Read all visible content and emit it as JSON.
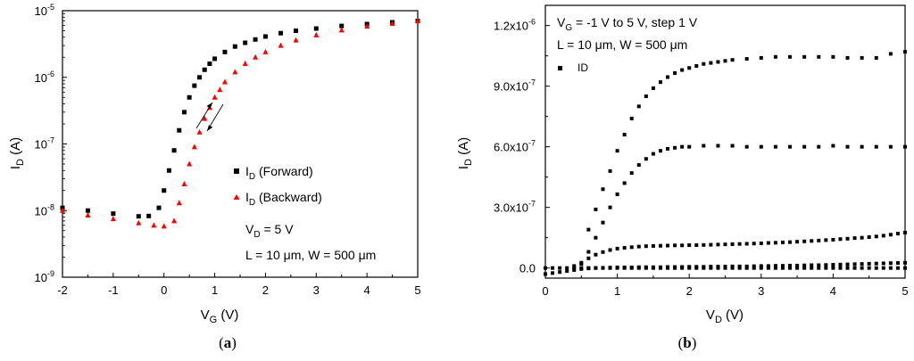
{
  "chart_data": [
    {
      "panel": "a",
      "caption": "(a)",
      "type": "scatter",
      "yscale": "log",
      "xlim": [
        -2,
        5
      ],
      "ylim": [
        1e-09,
        1e-05
      ],
      "xticks": [
        -2,
        -1,
        0,
        1,
        2,
        3,
        4,
        5
      ],
      "xtick_labels": [
        "-2",
        "-1",
        "0",
        "1",
        "2",
        "3",
        "4",
        "5"
      ],
      "yticks": [
        {
          "mant": "10",
          "exp": "-9",
          "value": 1e-09
        },
        {
          "mant": "10",
          "exp": "-8",
          "value": 1e-08
        },
        {
          "mant": "10",
          "exp": "-7",
          "value": 1e-07
        },
        {
          "mant": "10",
          "exp": "-6",
          "value": 1e-06
        },
        {
          "mant": "10",
          "exp": "-5",
          "value": 1e-05
        }
      ],
      "xlabel": {
        "main": "V",
        "sub": "G",
        "unit": " (V)"
      },
      "ylabel": {
        "main": "I",
        "sub": "D",
        "unit": " (A)"
      },
      "legend_position": "center-right",
      "series": [
        {
          "name_main": "I",
          "name_sub": "D",
          "name_rest": " (Forward)",
          "marker": "square",
          "color": "#000000",
          "x": [
            -2,
            -1.5,
            -1,
            -0.5,
            -0.3,
            -0.1,
            0,
            0.1,
            0.2,
            0.3,
            0.4,
            0.5,
            0.6,
            0.7,
            0.8,
            0.9,
            1.0,
            1.2,
            1.4,
            1.6,
            1.8,
            2.0,
            2.3,
            2.6,
            3.0,
            3.5,
            4.0,
            4.5,
            5.0
          ],
          "y": [
            1.1e-08,
            1e-08,
            9e-09,
            8.2e-09,
            8.3e-09,
            1.1e-08,
            2e-08,
            4e-08,
            8e-08,
            1.6e-07,
            3e-07,
            5e-07,
            7.5e-07,
            1e-06,
            1.3e-06,
            1.6e-06,
            1.9e-06,
            2.4e-06,
            2.9e-06,
            3.3e-06,
            3.7e-06,
            4.1e-06,
            4.6e-06,
            5e-06,
            5.4e-06,
            5.9e-06,
            6.3e-06,
            6.7e-06,
            7e-06
          ]
        },
        {
          "name_main": "I",
          "name_sub": "D",
          "name_rest": " (Backward)",
          "marker": "triangle",
          "color": "#ff0000",
          "x": [
            -2,
            -1.5,
            -1,
            -0.5,
            -0.2,
            0,
            0.2,
            0.3,
            0.4,
            0.5,
            0.6,
            0.7,
            0.8,
            0.9,
            1.0,
            1.1,
            1.2,
            1.4,
            1.6,
            1.8,
            2.0,
            2.3,
            2.6,
            3.0,
            3.5,
            4.0,
            4.5,
            5.0
          ],
          "y": [
            1e-08,
            8.5e-09,
            7.5e-09,
            6.5e-09,
            6e-09,
            5.8e-09,
            7e-09,
            1.3e-08,
            2.5e-08,
            5e-08,
            9e-08,
            1.5e-07,
            2.4e-07,
            3.5e-07,
            5e-07,
            6.5e-07,
            8.5e-07,
            1.2e-06,
            1.6e-06,
            2e-06,
            2.4e-06,
            3e-06,
            3.6e-06,
            4.3e-06,
            5.1e-06,
            5.8e-06,
            6.4e-06,
            7e-06
          ]
        }
      ],
      "annotations": [
        {
          "main": "V",
          "sub": "D",
          "rest": " = 5 V"
        },
        {
          "text": "L = 10 μm, W = 500 μm"
        }
      ]
    },
    {
      "panel": "b",
      "caption": "(b)",
      "type": "scatter",
      "xlim": [
        0,
        5
      ],
      "ylim": [
        -5e-08,
        1.3e-06
      ],
      "xticks": [
        0,
        1,
        2,
        3,
        4,
        5
      ],
      "xtick_labels": [
        "0",
        "1",
        "2",
        "3",
        "4",
        "5"
      ],
      "yticks": [
        {
          "mant": "0.0",
          "exp": "",
          "value": 0
        },
        {
          "mant": "3.0x10",
          "exp": "-7",
          "value": 3e-07
        },
        {
          "mant": "6.0x10",
          "exp": "-7",
          "value": 6e-07
        },
        {
          "mant": "9.0x10",
          "exp": "-7",
          "value": 9e-07
        },
        {
          "mant": "1.2x10",
          "exp": "-6",
          "value": 1.2e-06
        }
      ],
      "xlabel": {
        "main": "V",
        "sub": "D",
        "unit": " (V)"
      },
      "ylabel": {
        "main": "I",
        "sub": "D",
        "unit": " (A)"
      },
      "legend_position": "top-left",
      "legend": [
        "ID"
      ],
      "annotations": [
        {
          "main": "V",
          "sub": "G",
          "rest": " = -1 V to 5 V, step 1 V"
        },
        {
          "text": "L = 10 μm, W = 500 μm"
        }
      ],
      "series": [
        {
          "name": "ID",
          "color": "#000000",
          "x": [
            0,
            0.1,
            0.2,
            0.3,
            0.4,
            0.5,
            0.6,
            0.7,
            0.8,
            0.9,
            1.0,
            1.1,
            1.2,
            1.3,
            1.4,
            1.5,
            1.6,
            1.7,
            1.8,
            1.9,
            2.0,
            2.1,
            2.2,
            2.3,
            2.4,
            2.5,
            2.6,
            2.7,
            2.8,
            2.9,
            3.0,
            3.1,
            3.2,
            3.3,
            3.4,
            3.5,
            3.6,
            3.7,
            3.8,
            3.9,
            4.0,
            4.1,
            4.2,
            4.3,
            4.4,
            4.5,
            4.6,
            4.7,
            4.8,
            4.9,
            5.0
          ],
          "y": [
            0,
            0,
            0,
            0,
            0,
            0,
            0,
            0,
            0,
            0,
            0,
            0,
            0,
            0,
            0,
            0,
            0,
            0,
            0,
            0,
            0,
            0,
            0,
            0,
            0,
            0,
            0,
            0,
            0,
            0,
            0,
            0,
            0,
            0,
            0,
            0,
            0,
            0,
            0,
            0,
            0,
            0,
            0,
            0,
            0,
            0,
            0,
            0,
            0,
            0,
            0
          ]
        },
        {
          "color": "#000000",
          "x": [
            0,
            0.1,
            0.2,
            0.3,
            0.4,
            0.5,
            0.6,
            0.7,
            0.8,
            0.9,
            1.0,
            1.1,
            1.2,
            1.3,
            1.4,
            1.5,
            1.6,
            1.7,
            1.8,
            1.9,
            2.0,
            2.1,
            2.2,
            2.3,
            2.4,
            2.5,
            2.6,
            2.7,
            2.8,
            2.9,
            3.0,
            3.1,
            3.2,
            3.3,
            3.4,
            3.5,
            3.6,
            3.7,
            3.8,
            3.9,
            4.0,
            4.1,
            4.2,
            4.3,
            4.4,
            4.5,
            4.6,
            4.7,
            4.8,
            4.9,
            5.0
          ],
          "y": [
            -3e-08,
            -2.5e-08,
            -2e-08,
            -1.5e-08,
            -1e-08,
            -5e-09,
            -2e-09,
            0,
            1e-09,
            2e-09,
            3e-09,
            3e-09,
            3e-09,
            4e-09,
            4e-09,
            4e-09,
            4e-09,
            5e-09,
            5e-09,
            5e-09,
            6e-09,
            6e-09,
            6e-09,
            7e-09,
            7e-09,
            7e-09,
            8e-09,
            8e-09,
            8e-09,
            9e-09,
            1e-08,
            1e-08,
            1.1e-08,
            1.1e-08,
            1.2e-08,
            1.2e-08,
            1.3e-08,
            1.4e-08,
            1.4e-08,
            1.5e-08,
            1.6e-08,
            1.7e-08,
            1.8e-08,
            1.9e-08,
            2e-08,
            2.1e-08,
            2.2e-08,
            2.3e-08,
            2.4e-08,
            2.5e-08,
            2.6e-08
          ]
        },
        {
          "color": "#000000",
          "x": [
            0.4,
            0.5,
            0.6,
            0.7,
            0.8,
            0.9,
            1.0,
            1.1,
            1.2,
            1.3,
            1.4,
            1.5,
            1.6,
            1.7,
            1.8,
            1.9,
            2.0,
            2.1,
            2.2,
            2.3,
            2.4,
            2.5,
            2.6,
            2.7,
            2.8,
            2.9,
            3.0,
            3.1,
            3.2,
            3.3,
            3.4,
            3.5,
            3.6,
            3.7,
            3.8,
            3.9,
            4.0,
            4.1,
            4.2,
            4.3,
            4.4,
            4.5,
            4.6,
            4.7,
            4.8,
            4.9,
            5.0
          ],
          "y": [
            1e-08,
            2.6e-08,
            4.8e-08,
            6.6e-08,
            7.9e-08,
            8.9e-08,
            9.6e-08,
            1e-07,
            1.03e-07,
            1.06e-07,
            1.08e-07,
            1.09e-07,
            1.1e-07,
            1.11e-07,
            1.12e-07,
            1.12e-07,
            1.13e-07,
            1.13e-07,
            1.14e-07,
            1.15e-07,
            1.16e-07,
            1.17e-07,
            1.18e-07,
            1.19e-07,
            1.2e-07,
            1.21e-07,
            1.22e-07,
            1.24e-07,
            1.25e-07,
            1.27e-07,
            1.28e-07,
            1.3e-07,
            1.32e-07,
            1.34e-07,
            1.36e-07,
            1.38e-07,
            1.4e-07,
            1.43e-07,
            1.45e-07,
            1.48e-07,
            1.5e-07,
            1.53e-07,
            1.56e-07,
            1.6e-07,
            1.65e-07,
            1.7e-07,
            1.75e-07
          ]
        },
        {
          "color": "#000000",
          "x": [
            0.5,
            0.6,
            0.7,
            0.8,
            0.9,
            1.0,
            1.1,
            1.2,
            1.3,
            1.4,
            1.5,
            1.6,
            1.7,
            1.8,
            1.9,
            2.0,
            2.2,
            2.4,
            2.6,
            2.8,
            3.0,
            3.2,
            3.4,
            3.6,
            3.8,
            4.0,
            4.2,
            4.4,
            4.6,
            4.8,
            5.0
          ],
          "y": [
            2e-08,
            8e-08,
            1.5e-07,
            2.25e-07,
            3e-07,
            3.65e-07,
            4.2e-07,
            4.7e-07,
            5.1e-07,
            5.4e-07,
            5.65e-07,
            5.8e-07,
            5.9e-07,
            5.95e-07,
            6e-07,
            6e-07,
            6.05e-07,
            6.05e-07,
            6.05e-07,
            6e-07,
            6e-07,
            6e-07,
            6e-07,
            6e-07,
            6e-07,
            6.05e-07,
            6e-07,
            6e-07,
            6e-07,
            6e-07,
            6e-07
          ]
        },
        {
          "color": "#000000",
          "x": [
            0.6,
            0.7,
            0.8,
            0.9,
            1.0,
            1.1,
            1.2,
            1.3,
            1.4,
            1.5,
            1.6,
            1.7,
            1.8,
            1.9,
            2.0,
            2.1,
            2.2,
            2.3,
            2.4,
            2.5,
            2.6,
            2.8,
            3.0,
            3.2,
            3.4,
            3.6,
            3.8,
            4.0,
            4.2,
            4.4,
            4.6,
            4.8,
            5.0
          ],
          "y": [
            1.9e-07,
            2.9e-07,
            3.9e-07,
            4.8e-07,
            5.8e-07,
            6.6e-07,
            7.4e-07,
            8e-07,
            8.5e-07,
            8.9e-07,
            9.2e-07,
            9.45e-07,
            9.65e-07,
            9.8e-07,
            9.9e-07,
            1e-06,
            1.01e-06,
            1.015e-06,
            1.02e-06,
            1.025e-06,
            1.03e-06,
            1.035e-06,
            1.04e-06,
            1.045e-06,
            1.045e-06,
            1.045e-06,
            1.045e-06,
            1.045e-06,
            1.04e-06,
            1.04e-06,
            1.04e-06,
            1.06e-06,
            1.07e-06
          ]
        }
      ]
    }
  ]
}
